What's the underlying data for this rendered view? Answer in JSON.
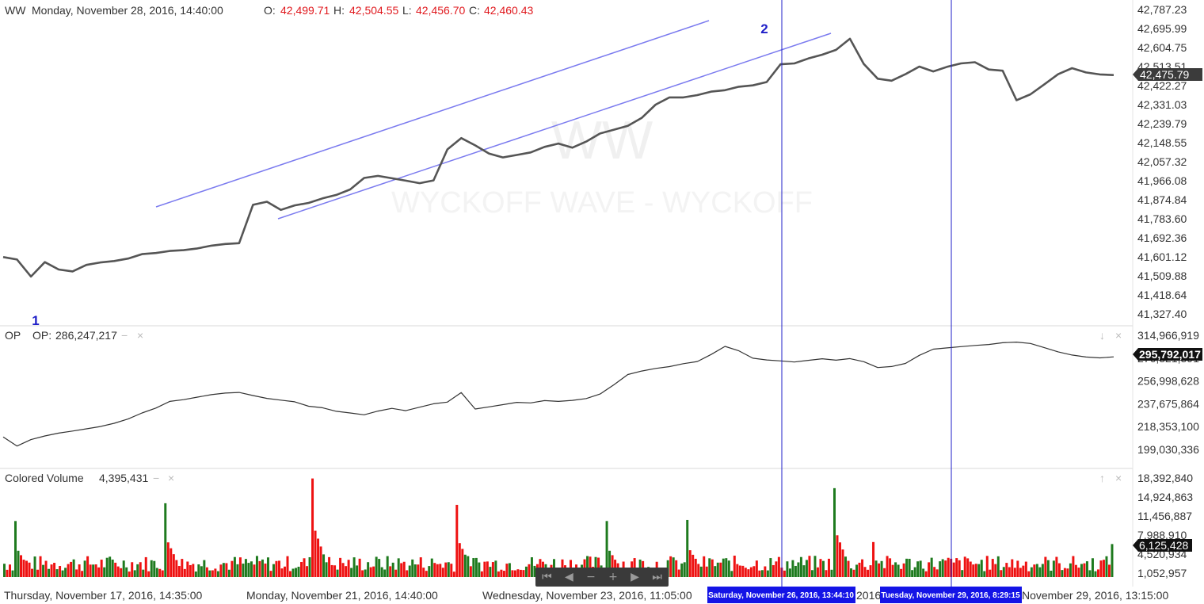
{
  "header": {
    "symbol": "WW",
    "datetime": "Monday, November 28, 2016, 14:40:00",
    "o_label": "O:",
    "o_value": "42,499.71",
    "h_label": "H:",
    "h_value": "42,504.55",
    "l_label": "L:",
    "l_value": "42,456.70",
    "c_label": "C:",
    "c_value": "42,460.43"
  },
  "watermark": {
    "line1": "WW",
    "line2": "WYCKOFF WAVE - WYCKOFF"
  },
  "annotations": {
    "marker1": "1",
    "marker2": "2"
  },
  "colors": {
    "price_line": "#555555",
    "channel": "#7b7bef",
    "vline": "#1f1fc8",
    "up_volume": "#1e7a1e",
    "down_volume": "#ee1111",
    "text_red": "#e0191e"
  },
  "op_panel": {
    "name": "OP",
    "label": "OP:",
    "value": "286,247,217",
    "minus": "−",
    "close": "×"
  },
  "volume_panel": {
    "name": "Colored Volume",
    "value": "4,395,431",
    "minus": "−",
    "close": "×",
    "arrow_up": "↑",
    "arrow_down": "↓"
  },
  "navigator": {
    "first": "⏮",
    "prev": "◀",
    "zoom_out": "−",
    "zoom_in": "+",
    "next": "▶",
    "last": "⏭"
  },
  "x_axis": {
    "labels": [
      "Thursday, November 17, 2016, 14:35:00",
      "Monday, November 21, 2016, 14:40:00",
      "Wednesday, November 23, 2016, 11:05:00",
      "2016",
      "November 29, 2016, 13:15:00"
    ],
    "cursor_labels": [
      "Saturday, November 26, 2016, 13:44:10",
      "Tuesday, November 29, 2016, 8:29:15"
    ]
  },
  "chart_data": [
    {
      "type": "line",
      "title": "WW",
      "y_ticks": [
        "42,787.23",
        "42,695.99",
        "42,604.75",
        "42,513.51",
        "42,422.27",
        "42,331.03",
        "42,239.79",
        "42,148.55",
        "42,057.32",
        "41,966.08",
        "41,874.84",
        "41,783.60",
        "41,692.36",
        "41,601.12",
        "41,509.88",
        "41,418.64",
        "41,327.40"
      ],
      "ylim": [
        41327.4,
        42787.23
      ],
      "last_value_label": "42,475.79",
      "last_value": 42475.79,
      "x": [
        0,
        5,
        10,
        15,
        20,
        25,
        30,
        35,
        40,
        45,
        50,
        55,
        60,
        65,
        70,
        75,
        80,
        85,
        90,
        95,
        100,
        105,
        110,
        115,
        120,
        125,
        130,
        135,
        140,
        145,
        150,
        155,
        160,
        165,
        170,
        175,
        180,
        185,
        190,
        195,
        200,
        205,
        210,
        215,
        220,
        225,
        230,
        235,
        240,
        245,
        250,
        255,
        260,
        265,
        270,
        275,
        280,
        285,
        290,
        295,
        300,
        305,
        310,
        315,
        320,
        325,
        330,
        335,
        340,
        345,
        350,
        355,
        360,
        365,
        370,
        375,
        380,
        385,
        390,
        395,
        400
      ],
      "values": [
        41600,
        41590,
        41510,
        41580,
        41545,
        41535,
        41565,
        41575,
        41580,
        41590,
        41610,
        41615,
        41625,
        41630,
        41640,
        41655,
        41665,
        41670,
        41855,
        41870,
        41830,
        41850,
        41860,
        41880,
        41895,
        41920,
        41975,
        41985,
        41975,
        41965,
        41955,
        41970,
        42120,
        42175,
        42140,
        42100,
        42080,
        42090,
        42100,
        42125,
        42140,
        42120,
        42150,
        42190,
        42210,
        42230,
        42270,
        42335,
        42370,
        42370,
        42380,
        42395,
        42400,
        42415,
        42420,
        42435,
        42520,
        42525,
        42550,
        42570,
        42595,
        42650,
        42530,
        42460,
        42450,
        42480,
        42515,
        42490,
        42510,
        42525,
        42530,
        42495,
        42490,
        42350,
        42380,
        42430,
        42480,
        42510,
        42490,
        42480,
        42475.79
      ]
    },
    {
      "type": "line",
      "title": "OP",
      "y_ticks": [
        "314,966,919",
        "276,321,391",
        "256,998,628",
        "237,675,864",
        "218,353,100",
        "199,030,336"
      ],
      "ylim": [
        190000000,
        320000000
      ],
      "last_value_label": "295,792,017",
      "last_value": 295792017,
      "x": [
        0,
        5,
        10,
        15,
        20,
        25,
        30,
        35,
        40,
        45,
        50,
        55,
        60,
        65,
        70,
        75,
        80,
        85,
        90,
        95,
        100,
        105,
        110,
        115,
        120,
        125,
        130,
        135,
        140,
        145,
        150,
        155,
        160,
        165,
        170,
        175,
        180,
        185,
        190,
        195,
        200,
        205,
        210,
        215,
        220,
        225,
        230,
        235,
        240,
        245,
        250,
        255,
        260,
        265,
        270,
        275,
        280,
        285,
        290,
        295,
        300,
        305,
        310,
        315,
        320,
        325,
        330,
        335,
        340,
        345,
        350,
        355,
        360,
        365,
        370,
        375,
        380,
        385,
        390,
        395,
        400
      ],
      "values": [
        212000000,
        203000000,
        210000000,
        214000000,
        217000000,
        219000000,
        221000000,
        223000000,
        226000000,
        230000000,
        236000000,
        241000000,
        248000000,
        250000000,
        253000000,
        256000000,
        258000000,
        259000000,
        256000000,
        253000000,
        251000000,
        249000000,
        244000000,
        242000000,
        238000000,
        236000000,
        234000000,
        238000000,
        241000000,
        239000000,
        243000000,
        247000000,
        249000000,
        259000000,
        242000000,
        244000000,
        246000000,
        248000000,
        247000000,
        249000000,
        248000000,
        249000000,
        251000000,
        256000000,
        266000000,
        277000000,
        281000000,
        284000000,
        286000000,
        289000000,
        291000000,
        298000000,
        306000000,
        301000000,
        293000000,
        291000000,
        290000000,
        289000000,
        291000000,
        293000000,
        292000000,
        294000000,
        291000000,
        285000000,
        286000000,
        289000000,
        297000000,
        303000000,
        304000000,
        305000000,
        306000000,
        307000000,
        309000000,
        310000000,
        309000000,
        305000000,
        301000000,
        298000000,
        296000000,
        295000000,
        295792017
      ]
    },
    {
      "type": "bar",
      "title": "Colored Volume",
      "y_ticks": [
        "18,392,840",
        "14,924,863",
        "11,456,887",
        "7,988,910",
        "4,520,934",
        "1,052,957"
      ],
      "ylim": [
        0,
        18392840
      ],
      "last_value_label": "6,125,428",
      "last_value": 6125428,
      "spikes": [
        {
          "x": 4,
          "value": 10400000,
          "up": true
        },
        {
          "x": 58,
          "value": 13700000,
          "up": true
        },
        {
          "x": 111,
          "value": 18300000,
          "up": false
        },
        {
          "x": 163,
          "value": 13400000,
          "up": false
        },
        {
          "x": 217,
          "value": 10400000,
          "up": true
        },
        {
          "x": 246,
          "value": 10600000,
          "up": true
        },
        {
          "x": 299,
          "value": 16500000,
          "up": true
        },
        {
          "x": 313,
          "value": 6500000,
          "up": false
        }
      ],
      "base_range": [
        1000000,
        4000000
      ],
      "count": 400
    }
  ]
}
